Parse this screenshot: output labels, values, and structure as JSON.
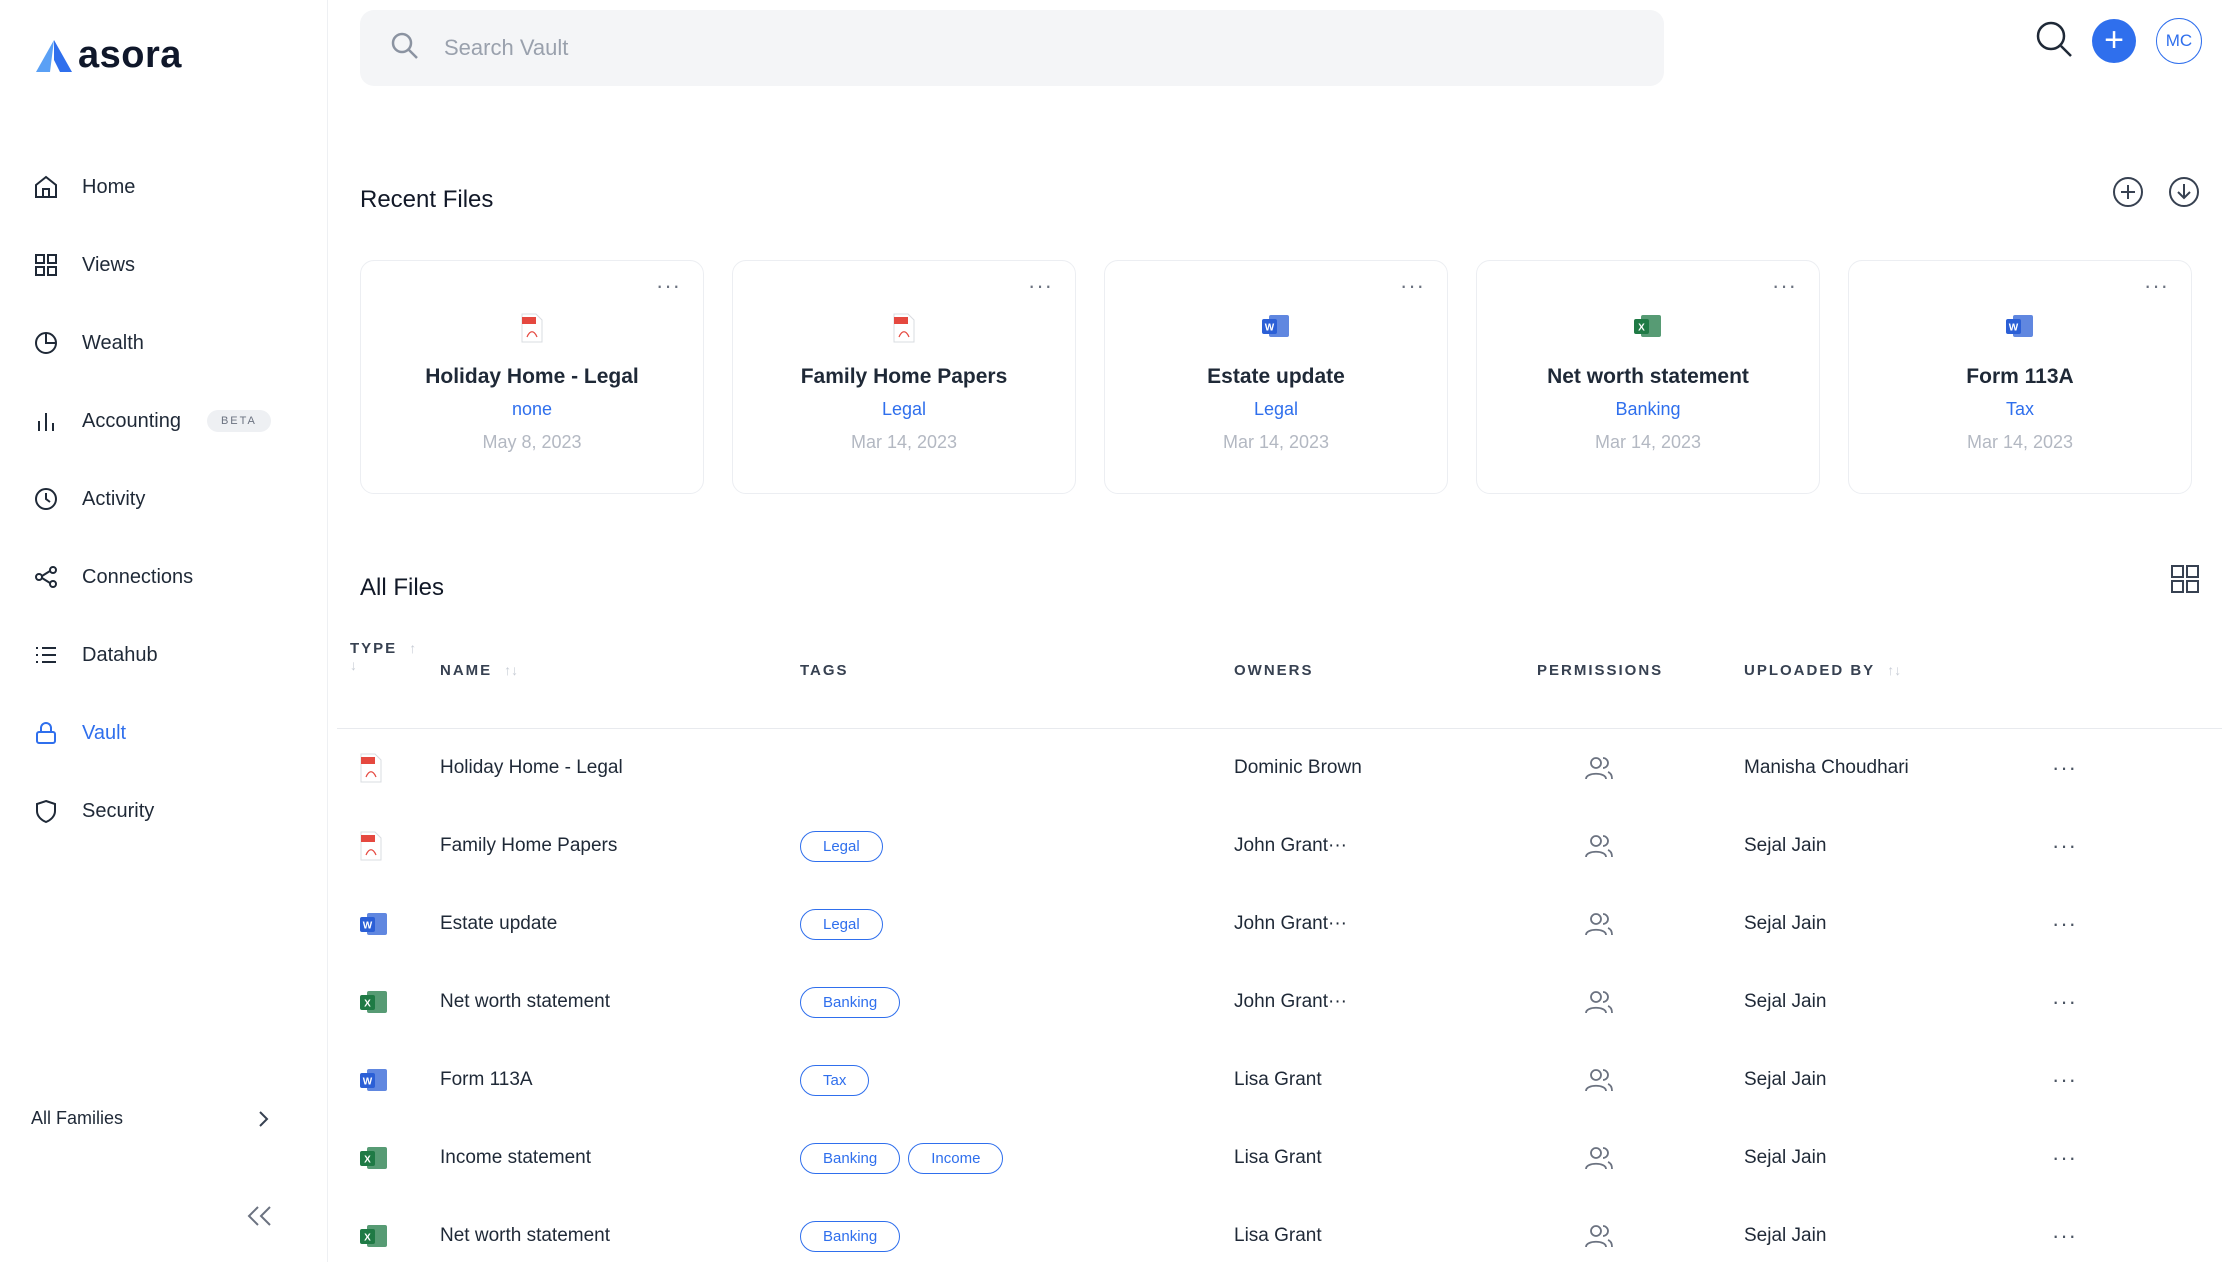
{
  "brand": {
    "name": "asora"
  },
  "sidebar": {
    "items": [
      {
        "label": "Home",
        "icon": "home-icon"
      },
      {
        "label": "Views",
        "icon": "grid-icon"
      },
      {
        "label": "Wealth",
        "icon": "pie-chart-icon"
      },
      {
        "label": "Accounting",
        "icon": "bar-chart-icon",
        "badge": "BETA"
      },
      {
        "label": "Activity",
        "icon": "clock-icon"
      },
      {
        "label": "Connections",
        "icon": "share-icon"
      },
      {
        "label": "Datahub",
        "icon": "list-icon"
      },
      {
        "label": "Vault",
        "icon": "lock-icon",
        "active": true
      },
      {
        "label": "Security",
        "icon": "shield-icon"
      }
    ],
    "families_label": "All Families"
  },
  "search": {
    "placeholder": "Search Vault"
  },
  "user": {
    "initials": "MC"
  },
  "colors": {
    "accent": "#2f6fed",
    "pdf": "#e5483f",
    "word": "#2b5fd6",
    "excel": "#1f7a45"
  },
  "recent": {
    "title": "Recent Files",
    "cards": [
      {
        "name": "Holiday Home - Legal",
        "tag": "none",
        "date": "May 8, 2023",
        "type": "pdf"
      },
      {
        "name": "Family Home Papers",
        "tag": "Legal",
        "date": "Mar 14, 2023",
        "type": "pdf"
      },
      {
        "name": "Estate update",
        "tag": "Legal",
        "date": "Mar 14, 2023",
        "type": "word"
      },
      {
        "name": "Net worth statement",
        "tag": "Banking",
        "date": "Mar 14, 2023",
        "type": "excel"
      },
      {
        "name": "Form 113A",
        "tag": "Tax",
        "date": "Mar 14, 2023",
        "type": "word"
      }
    ]
  },
  "all_files": {
    "title": "All Files",
    "headers": {
      "type": "TYPE",
      "name": "NAME",
      "tags": "TAGS",
      "owners": "OWNERS",
      "permissions": "PERMISSIONS",
      "uploaded_by": "UPLOADED BY"
    },
    "rows": [
      {
        "type": "pdf",
        "name": "Holiday Home - Legal",
        "tags": [],
        "owner": "Dominic Brown",
        "uploaded_by": "Manisha Choudhari"
      },
      {
        "type": "pdf",
        "name": "Family Home Papers",
        "tags": [
          "Legal"
        ],
        "owner": "John Grant···",
        "uploaded_by": "Sejal Jain"
      },
      {
        "type": "word",
        "name": "Estate update",
        "tags": [
          "Legal"
        ],
        "owner": "John Grant···",
        "uploaded_by": "Sejal Jain"
      },
      {
        "type": "excel",
        "name": "Net worth statement",
        "tags": [
          "Banking"
        ],
        "owner": "John Grant···",
        "uploaded_by": "Sejal Jain"
      },
      {
        "type": "word",
        "name": "Form 113A",
        "tags": [
          "Tax"
        ],
        "owner": "Lisa Grant",
        "uploaded_by": "Sejal Jain"
      },
      {
        "type": "excel",
        "name": "Income statement",
        "tags": [
          "Banking",
          "Income"
        ],
        "owner": "Lisa Grant",
        "uploaded_by": "Sejal Jain"
      },
      {
        "type": "excel",
        "name": "Net worth statement",
        "tags": [
          "Banking"
        ],
        "owner": "Lisa Grant",
        "uploaded_by": "Sejal Jain"
      }
    ]
  }
}
